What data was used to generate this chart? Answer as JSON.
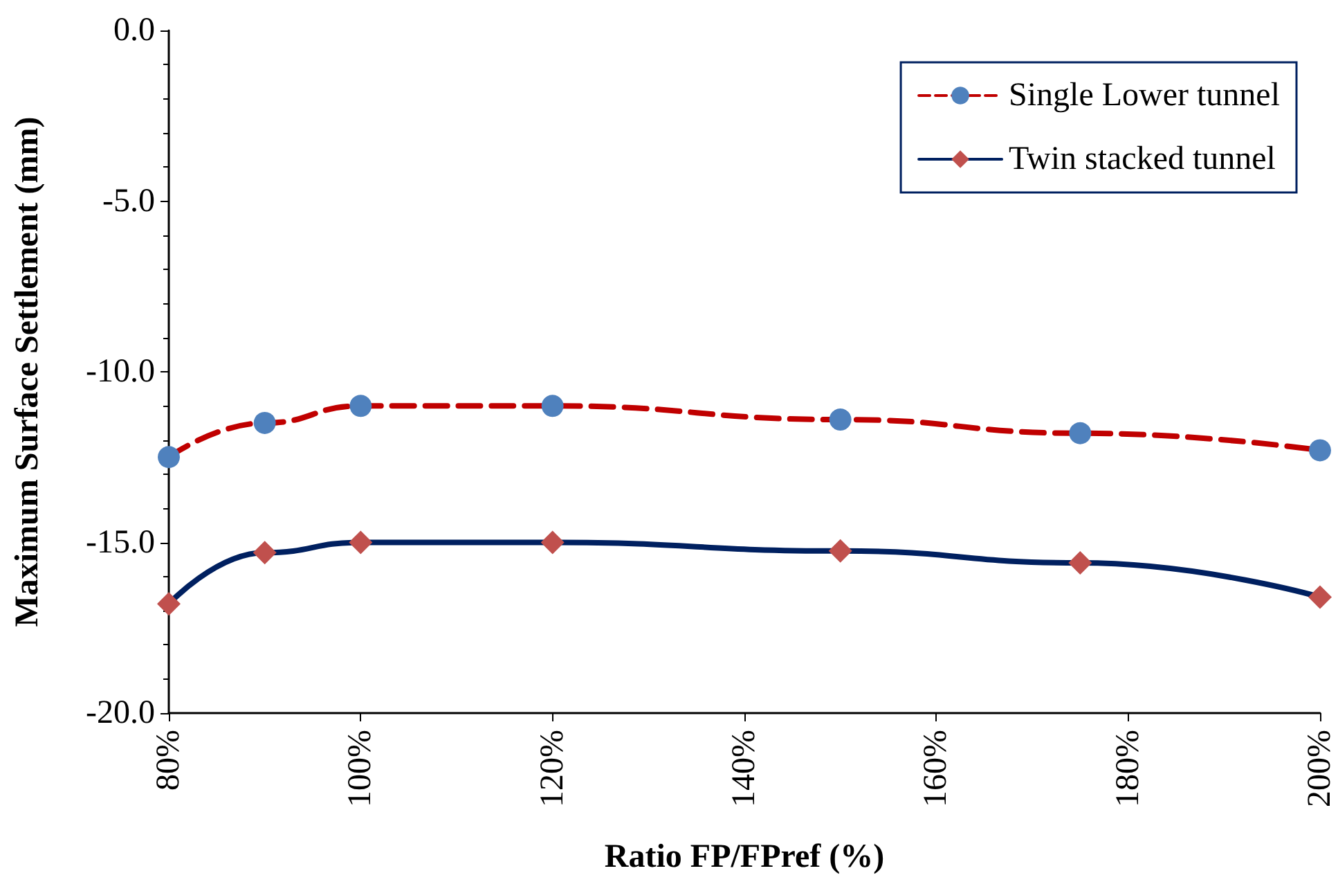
{
  "chart_data": {
    "type": "line",
    "xlabel": "Ratio FP/FPref (%)",
    "ylabel": "Maximum Surface Settlement (mm)",
    "x": [
      80,
      90,
      100,
      120,
      150,
      175,
      200
    ],
    "series": [
      {
        "name": "Single Lower tunnel",
        "color": "#c00000",
        "colors": [
          "#4f81bd",
          "#4f81bd",
          "#4f81bd",
          "#4f81bd",
          "#4f81bd",
          "#4f81bd",
          "#4f81bd"
        ],
        "marker": "circle",
        "line_style": "dashed",
        "values": [
          -12.5,
          -11.5,
          -11.0,
          -11.0,
          -11.4,
          -11.8,
          -12.3
        ]
      },
      {
        "name": "Twin stacked tunnel",
        "color": "#002060",
        "colors": [
          "#c0504d",
          "#c0504d",
          "#c0504d",
          "#c0504d",
          "#c0504d",
          "#c0504d",
          "#c0504d"
        ],
        "marker": "diamond",
        "line_style": "solid",
        "values": [
          -16.8,
          -15.3,
          -15.0,
          -15.0,
          -15.25,
          -15.6,
          -16.6
        ]
      }
    ],
    "xlim": [
      80,
      200
    ],
    "xticks": [
      {
        "value": 80,
        "label": "80%"
      },
      {
        "value": 100,
        "label": "100%"
      },
      {
        "value": 120,
        "label": "120%"
      },
      {
        "value": 140,
        "label": "140%"
      },
      {
        "value": 160,
        "label": "160%"
      },
      {
        "value": 180,
        "label": "180%"
      },
      {
        "value": 200,
        "label": "200%"
      }
    ],
    "ylim": [
      -20,
      0
    ],
    "yticks": [
      {
        "value": -20,
        "label": "-20.0"
      },
      {
        "value": -15,
        "label": "-15.0"
      },
      {
        "value": -10,
        "label": "-10.0"
      },
      {
        "value": -5,
        "label": "-5.0"
      },
      {
        "value": 0,
        "label": "0.0"
      }
    ],
    "grid": false,
    "legend": "top right"
  }
}
